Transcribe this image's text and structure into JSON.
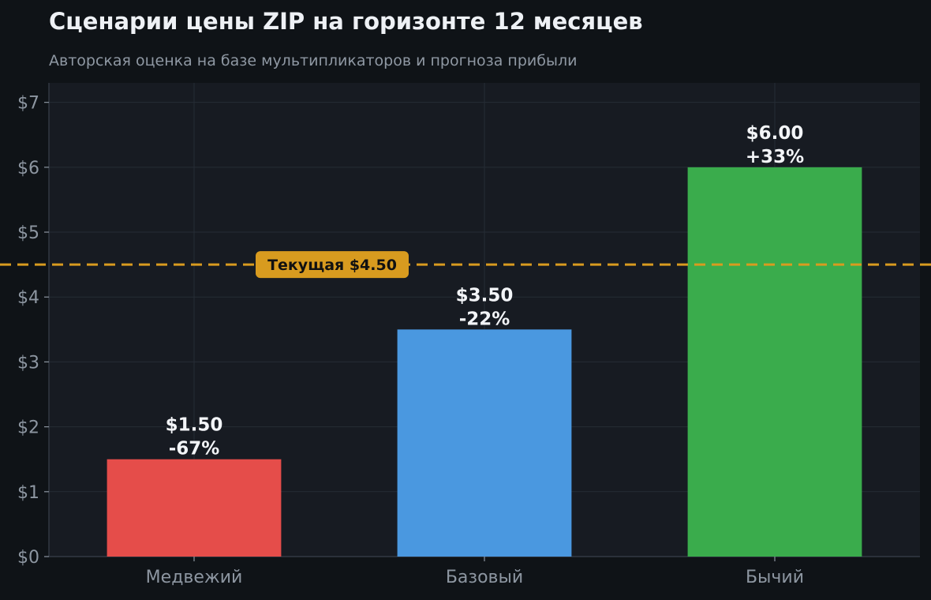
{
  "chart_data": {
    "type": "bar",
    "title": "Сценарии цены ZIP на горизонте 12 месяцев",
    "subtitle": "Авторская оценка на базе мультипликаторов и прогноза прибыли",
    "categories": [
      "Медвежий",
      "Базовый",
      "Бычий"
    ],
    "values": [
      1.5,
      3.5,
      6.0
    ],
    "value_labels": [
      "$1.50",
      "$3.50",
      "$6.00"
    ],
    "change_labels": [
      "-67%",
      "-22%",
      "+33%"
    ],
    "bar_colors": [
      "#e54d4a",
      "#4a98e0",
      "#3aac4c"
    ],
    "ylim": [
      0,
      7.3
    ],
    "yticks": [
      0,
      1,
      2,
      3,
      4,
      5,
      6,
      7
    ],
    "ytick_labels": [
      "$0",
      "$1",
      "$2",
      "$3",
      "$4",
      "$5",
      "$6",
      "$7"
    ],
    "grid": true,
    "reference_line": {
      "value": 4.5,
      "label": "Текущая $4.50",
      "color": "#d89b1f"
    }
  }
}
